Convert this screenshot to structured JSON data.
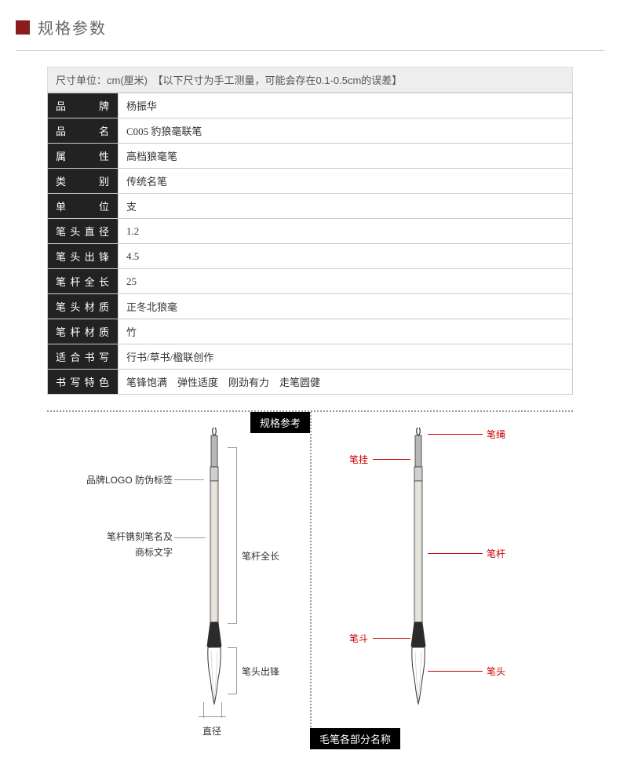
{
  "header": {
    "title": "规格参数"
  },
  "unit_note": "尺寸单位：cm(厘米)　【以下尺寸为手工测量，可能会存在0.1-0.5cm的误差】",
  "spec_rows": [
    {
      "label": "品　　牌",
      "value": "杨振华"
    },
    {
      "label": "品　　名",
      "value": "C005 豹狼毫联笔"
    },
    {
      "label": "属　　性",
      "value": "高档狼毫笔"
    },
    {
      "label": "类　　别",
      "value": "传统名笔"
    },
    {
      "label": "单　　位",
      "value": "支"
    },
    {
      "label": "笔头直径",
      "value": "1.2"
    },
    {
      "label": "笔头出锋",
      "value": "4.5"
    },
    {
      "label": "笔杆全长",
      "value": "25"
    },
    {
      "label": "笔头材质",
      "value": "正冬北狼毫"
    },
    {
      "label": "笔杆材质",
      "value": "竹"
    },
    {
      "label": "适合书写",
      "value": "行书/草书/楹联创作"
    },
    {
      "label": "书写特色",
      "value": "笔锋饱满　弹性适度　刚劲有力　走笔圆健"
    }
  ],
  "diagram": {
    "tag_left": "规格参考",
    "tag_right": "毛笔各部分名称",
    "left_labels": {
      "logo": "品牌LOGO 防伪标签",
      "engrave1": "笔杆镌刻笔名及",
      "engrave2": "商标文字",
      "shaft_len": "笔杆全长",
      "tip_len": "笔头出锋",
      "diameter": "直径"
    },
    "right_labels": {
      "rope": "笔绳",
      "hang": "笔挂",
      "shaft": "笔杆",
      "ferrule": "笔斗",
      "tip": "笔头"
    }
  },
  "brush_svg": {
    "barrel_fill": "#e8e5de",
    "ferrule_fill": "#b8b8b8",
    "label_fill": "#d0d0d0",
    "stroke": "#333",
    "tip_fill": "#fff"
  }
}
